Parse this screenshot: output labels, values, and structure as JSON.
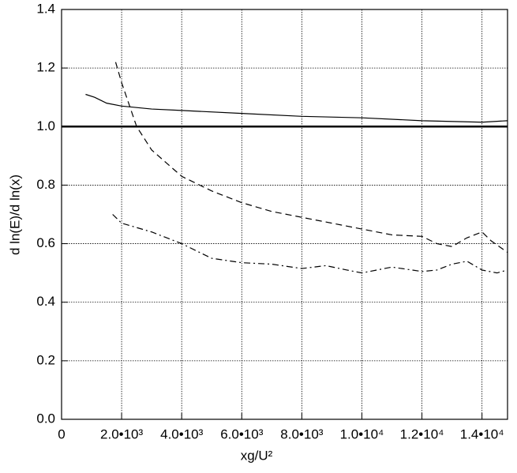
{
  "chart_data": {
    "type": "line",
    "x_label": "xg/U²",
    "y_label": "d ln(E)/d ln(x)",
    "xlim": [
      0,
      14850
    ],
    "ylim": [
      0,
      1.4
    ],
    "xticks": [
      0,
      {
        "value": 2000,
        "label": "2.0•10³"
      },
      {
        "value": 4000,
        "label": "4.0•10³"
      },
      {
        "value": 6000,
        "label": "6.0•10³"
      },
      {
        "value": 8000,
        "label": "8.0•10³"
      },
      {
        "value": 10000,
        "label": "1.0•10⁴"
      },
      {
        "value": 12000,
        "label": "1.2•10⁴"
      },
      {
        "value": 14000,
        "label": "1.4•10⁴"
      }
    ],
    "yticks": [
      {
        "value": 0,
        "label": "0.0"
      },
      0.2,
      0.4,
      0.6,
      0.8,
      {
        "value": 1,
        "label": "1.0"
      },
      1.2,
      1.4
    ],
    "grid": true,
    "series": [
      {
        "color": "#000000",
        "style": "solid",
        "width": 2.5,
        "x": [
          0,
          14850
        ],
        "values": [
          1.0,
          1.0
        ]
      },
      {
        "color": "#000000",
        "style": "solid",
        "width": 1.2,
        "x": [
          800,
          1100,
          1500,
          2000,
          3000,
          4000,
          6000,
          8000,
          10000,
          12000,
          14000,
          14850
        ],
        "values": [
          1.11,
          1.1,
          1.08,
          1.07,
          1.06,
          1.055,
          1.045,
          1.035,
          1.03,
          1.02,
          1.015,
          1.02
        ]
      },
      {
        "color": "#000000",
        "style": "dashed",
        "width": 1.2,
        "x": [
          1800,
          2000,
          2500,
          3000,
          4000,
          5000,
          6000,
          7000,
          8000,
          9000,
          10000,
          11000,
          12000,
          12500,
          13000,
          13500,
          14000,
          14300,
          14850
        ],
        "values": [
          1.22,
          1.15,
          1.0,
          0.92,
          0.83,
          0.78,
          0.74,
          0.71,
          0.69,
          0.67,
          0.65,
          0.63,
          0.625,
          0.6,
          0.59,
          0.62,
          0.64,
          0.61,
          0.57
        ]
      },
      {
        "color": "#000000",
        "style": "dashdot",
        "width": 1.2,
        "x": [
          1700,
          2000,
          3000,
          4000,
          5000,
          6000,
          7000,
          8000,
          8800,
          9500,
          10000,
          11000,
          12000,
          12500,
          13000,
          13500,
          14000,
          14500,
          14850
        ],
        "values": [
          0.7,
          0.67,
          0.64,
          0.6,
          0.55,
          0.535,
          0.53,
          0.515,
          0.525,
          0.51,
          0.5,
          0.52,
          0.505,
          0.51,
          0.53,
          0.54,
          0.51,
          0.5,
          0.51
        ]
      }
    ]
  }
}
